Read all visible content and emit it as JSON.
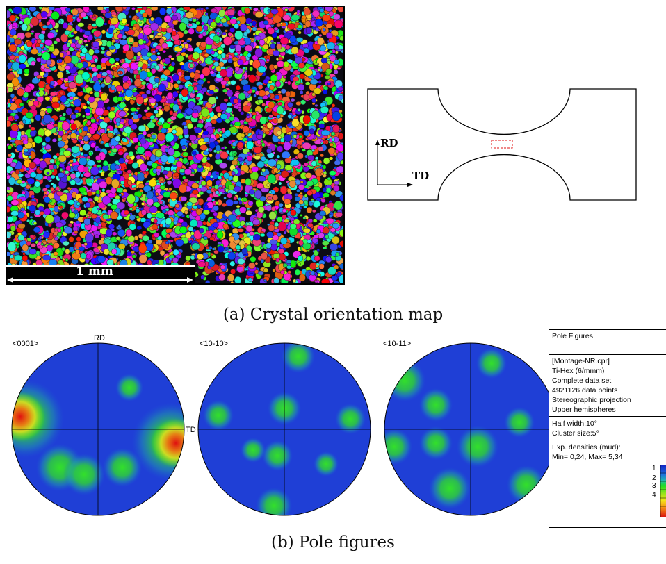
{
  "map": {
    "scale_bar_label": "1 mm"
  },
  "specimen": {
    "rd_label": "RD",
    "td_label": "TD"
  },
  "captions": {
    "a": "(a) Crystal orientation map",
    "b": "(b) Pole figures"
  },
  "pole_figures": {
    "titles": [
      "<0001>",
      "<10-10>",
      "<10-11>"
    ],
    "axis_rd": "RD",
    "axis_td": "TD"
  },
  "legend": {
    "title": "Pole Figures",
    "info_lines": [
      "[Montage-NR.cpr]",
      "Ti-Hex (6/mmm)",
      "Complete data set",
      "4921126 data points",
      "Stereographic projection",
      "Upper hemispheres"
    ],
    "params": [
      "Half width:10°",
      "Cluster size:5°"
    ],
    "density_title": "Exp. densities (mud):",
    "density_range": "Min= 0,24, Max= 5,34",
    "scale_values": [
      "1",
      "2",
      "3",
      "4"
    ]
  },
  "colors": {
    "low": "#1a2ad8",
    "mid": "#22dd22",
    "high": "#e81c10",
    "specimen_region": "#e01010"
  }
}
